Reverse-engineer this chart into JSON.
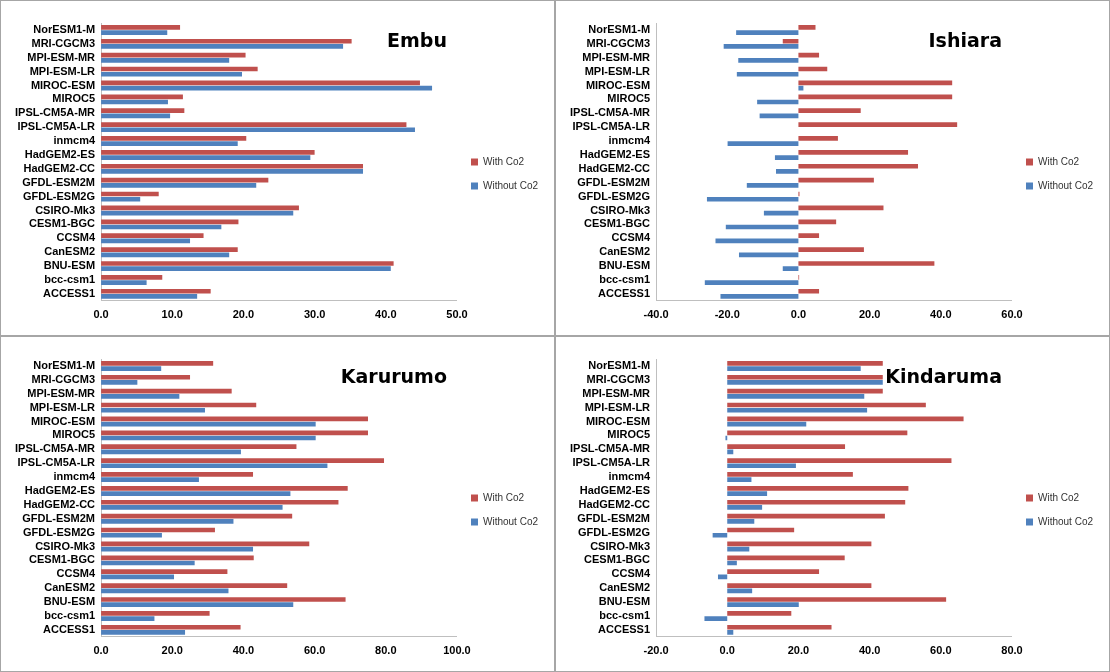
{
  "chart_data": [
    {
      "type": "bar",
      "orientation": "horizontal",
      "title": "Embu",
      "legend": "right",
      "grid": false,
      "categories": [
        "NorESM1-M",
        "MRI-CGCM3",
        "MPI-ESM-MR",
        "MPI-ESM-LR",
        "MIROC-ESM",
        "MIROC5",
        "IPSL-CM5A-MR",
        "IPSL-CM5A-LR",
        "inmcm4",
        "HadGEM2-ES",
        "HadGEM2-CC",
        "GFDL-ESM2M",
        "GFDL-ESM2G",
        "CSIRO-Mk3",
        "CESM1-BGC",
        "CCSM4",
        "CanESM2",
        "BNU-ESM",
        "bcc-csm1",
        "ACCESS1"
      ],
      "xlim": [
        0,
        50
      ],
      "xticks": [
        {
          "value": 0,
          "label": "0.0"
        },
        {
          "value": 10,
          "label": "10.0"
        },
        {
          "value": 20,
          "label": "20.0"
        },
        {
          "value": 30,
          "label": "30.0"
        },
        {
          "value": 40,
          "label": "40.0"
        },
        {
          "value": 50,
          "label": "50.0"
        }
      ],
      "series": [
        {
          "name": "With Co2",
          "color": "#c0504d",
          "values": [
            11.1,
            35.2,
            20.3,
            22.0,
            44.8,
            11.5,
            11.7,
            42.9,
            20.4,
            30.0,
            36.8,
            23.5,
            8.1,
            27.8,
            19.3,
            14.4,
            19.2,
            41.1,
            8.6,
            15.4
          ]
        },
        {
          "name": "Without Co2",
          "color": "#4f81bd",
          "values": [
            9.3,
            34.0,
            18.0,
            19.8,
            46.5,
            9.4,
            9.7,
            44.1,
            19.2,
            29.4,
            36.8,
            21.8,
            5.5,
            27.0,
            16.9,
            12.5,
            18.0,
            40.7,
            6.4,
            13.5
          ]
        }
      ]
    },
    {
      "type": "bar",
      "orientation": "horizontal",
      "title": "Ishiara",
      "legend": "right",
      "grid": false,
      "categories": [
        "NorESM1-M",
        "MRI-CGCM3",
        "MPI-ESM-MR",
        "MPI-ESM-LR",
        "MIROC-ESM",
        "MIROC5",
        "IPSL-CM5A-MR",
        "IPSL-CM5A-LR",
        "inmcm4",
        "HadGEM2-ES",
        "HadGEM2-CC",
        "GFDL-ESM2M",
        "GFDL-ESM2G",
        "CSIRO-Mk3",
        "CESM1-BGC",
        "CCSM4",
        "CanESM2",
        "BNU-ESM",
        "bcc-csm1",
        "ACCESS1"
      ],
      "xlim": [
        -40,
        60
      ],
      "xticks": [
        {
          "value": -40,
          "label": "-40.0"
        },
        {
          "value": -20,
          "label": "-20.0"
        },
        {
          "value": 0,
          "label": "0.0"
        },
        {
          "value": 20,
          "label": "20.0"
        },
        {
          "value": 40,
          "label": "40.0"
        },
        {
          "value": 60,
          "label": "60.0"
        }
      ],
      "series": [
        {
          "name": "With Co2",
          "color": "#c0504d",
          "values": [
            4.8,
            -4.4,
            5.8,
            8.1,
            43.2,
            43.2,
            17.5,
            44.6,
            11.1,
            30.8,
            33.6,
            21.2,
            0.3,
            23.9,
            10.6,
            5.8,
            18.4,
            38.2,
            0.2,
            5.8
          ]
        },
        {
          "name": "Without Co2",
          "color": "#4f81bd",
          "values": [
            -17.5,
            -21.0,
            -16.9,
            -17.3,
            1.4,
            -11.6,
            -10.9,
            null,
            -19.9,
            -6.6,
            -6.3,
            -14.5,
            -25.7,
            -9.7,
            -20.4,
            -23.3,
            -16.7,
            -4.4,
            -26.3,
            -21.9
          ]
        }
      ]
    },
    {
      "type": "bar",
      "orientation": "horizontal",
      "title": "Karurumo",
      "legend": "right",
      "grid": false,
      "categories": [
        "NorESM1-M",
        "MRI-CGCM3",
        "MPI-ESM-MR",
        "MPI-ESM-LR",
        "MIROC-ESM",
        "MIROC5",
        "IPSL-CM5A-MR",
        "IPSL-CM5A-LR",
        "inmcm4",
        "HadGEM2-ES",
        "HadGEM2-CC",
        "GFDL-ESM2M",
        "GFDL-ESM2G",
        "CSIRO-Mk3",
        "CESM1-BGC",
        "CCSM4",
        "CanESM2",
        "BNU-ESM",
        "bcc-csm1",
        "ACCESS1"
      ],
      "xlim": [
        0,
        100
      ],
      "xticks": [
        {
          "value": 0,
          "label": "0.0"
        },
        {
          "value": 20,
          "label": "20.0"
        },
        {
          "value": 40,
          "label": "40.0"
        },
        {
          "value": 60,
          "label": "60.0"
        },
        {
          "value": 80,
          "label": "80.0"
        },
        {
          "value": 100,
          "label": "100.0"
        }
      ],
      "series": [
        {
          "name": "With Co2",
          "color": "#c0504d",
          "values": [
            31.5,
            25.0,
            36.7,
            43.6,
            75.0,
            75.0,
            54.9,
            79.5,
            42.7,
            69.3,
            66.7,
            53.7,
            32.0,
            58.5,
            42.9,
            35.5,
            52.3,
            68.7,
            30.5,
            39.2
          ]
        },
        {
          "name": "Without Co2",
          "color": "#4f81bd",
          "values": [
            16.9,
            10.2,
            22.0,
            29.2,
            60.3,
            60.3,
            39.3,
            63.6,
            27.5,
            53.2,
            51.0,
            37.2,
            17.1,
            42.7,
            26.3,
            20.5,
            35.8,
            54.0,
            15.0,
            23.6
          ]
        }
      ]
    },
    {
      "type": "bar",
      "orientation": "horizontal",
      "title": "Kindaruma",
      "legend": "right",
      "grid": false,
      "categories": [
        "NorESM1-M",
        "MRI-CGCM3",
        "MPI-ESM-MR",
        "MPI-ESM-LR",
        "MIROC-ESM",
        "MIROC5",
        "IPSL-CM5A-MR",
        "IPSL-CM5A-LR",
        "inmcm4",
        "HadGEM2-ES",
        "HadGEM2-CC",
        "GFDL-ESM2M",
        "GFDL-ESM2G",
        "CSIRO-Mk3",
        "CESM1-BGC",
        "CCSM4",
        "CanESM2",
        "BNU-ESM",
        "bcc-csm1",
        "ACCESS1"
      ],
      "xlim": [
        -20,
        80
      ],
      "xticks": [
        {
          "value": -20,
          "label": "-20.0"
        },
        {
          "value": 0,
          "label": "0.0"
        },
        {
          "value": 20,
          "label": "20.0"
        },
        {
          "value": 40,
          "label": "40.0"
        },
        {
          "value": 60,
          "label": "60.0"
        },
        {
          "value": 80,
          "label": "80.0"
        }
      ],
      "series": [
        {
          "name": "With Co2",
          "color": "#c0504d",
          "values": [
            43.7,
            43.7,
            43.7,
            55.8,
            66.4,
            50.6,
            33.1,
            63.0,
            35.3,
            50.9,
            50.0,
            44.3,
            18.8,
            40.5,
            33.0,
            25.8,
            40.5,
            61.5,
            18.0,
            29.3
          ]
        },
        {
          "name": "Without Co2",
          "color": "#4f81bd",
          "values": [
            37.5,
            43.7,
            38.5,
            39.3,
            22.2,
            -0.5,
            1.7,
            19.3,
            6.8,
            11.2,
            9.8,
            7.6,
            -4.1,
            6.2,
            2.7,
            -2.6,
            7.0,
            20.1,
            -6.4,
            1.7
          ]
        }
      ]
    }
  ]
}
